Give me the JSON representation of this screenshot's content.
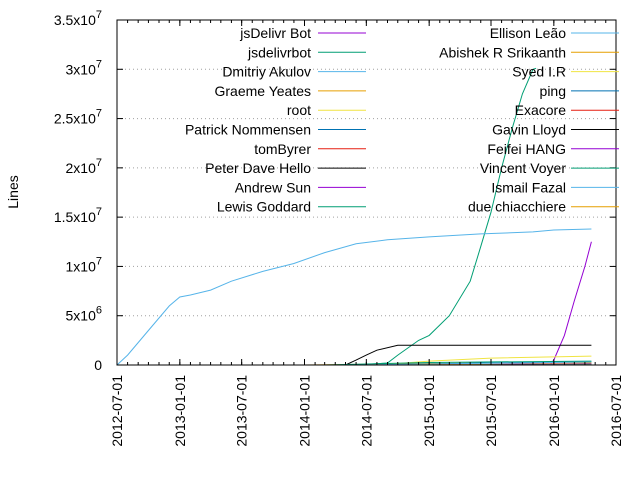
{
  "chart_data": {
    "type": "line",
    "title": "",
    "xlabel": "",
    "ylabel": "Lines",
    "x_ticks": [
      "2012-07-01",
      "2013-01-01",
      "2013-07-01",
      "2014-01-01",
      "2014-07-01",
      "2015-01-01",
      "2015-07-01",
      "2016-01-01",
      "2016-07-01"
    ],
    "y_ticks": [
      {
        "value": 0,
        "label": "0",
        "exp": ""
      },
      {
        "value": 5000000,
        "label": "5x10",
        "exp": "6"
      },
      {
        "value": 10000000,
        "label": "1x10",
        "exp": "7"
      },
      {
        "value": 15000000,
        "label": "1.5x10",
        "exp": "7"
      },
      {
        "value": 20000000,
        "label": "2x10",
        "exp": "7"
      },
      {
        "value": 25000000,
        "label": "2.5x10",
        "exp": "7"
      },
      {
        "value": 30000000,
        "label": "3x10",
        "exp": "7"
      },
      {
        "value": 35000000,
        "label": "3.5x10",
        "exp": "7"
      }
    ],
    "xlim": [
      "2012-07-01",
      "2016-07-01"
    ],
    "ylim": [
      0,
      35000000
    ],
    "grid": "horizontal-dotted",
    "legend_position": "top",
    "series": [
      {
        "name": "jsDelivr Bot",
        "color": "#9400d3",
        "points": [
          [
            "2015-12-20",
            0
          ],
          [
            "2016-01-01",
            500000
          ],
          [
            "2016-02-01",
            3000000
          ],
          [
            "2016-03-01",
            6500000
          ],
          [
            "2016-04-01",
            10000000
          ],
          [
            "2016-04-20",
            12500000
          ]
        ]
      },
      {
        "name": "jsdelivrbot",
        "color": "#009e73",
        "points": [
          [
            "2014-06-01",
            0
          ],
          [
            "2014-09-01",
            200000
          ],
          [
            "2014-10-01",
            1000000
          ],
          [
            "2014-12-01",
            2500000
          ],
          [
            "2015-01-01",
            3000000
          ],
          [
            "2015-03-01",
            5000000
          ],
          [
            "2015-05-01",
            8500000
          ],
          [
            "2015-06-01",
            12000000
          ],
          [
            "2015-07-01",
            15500000
          ],
          [
            "2015-08-01",
            20000000
          ],
          [
            "2015-09-01",
            24000000
          ],
          [
            "2015-10-01",
            27500000
          ],
          [
            "2015-11-01",
            30000000
          ],
          [
            "2015-11-10",
            30100000
          ]
        ]
      },
      {
        "name": "Dmitriy Akulov",
        "color": "#56b4e9",
        "points": [
          [
            "2012-07-01",
            0
          ],
          [
            "2012-08-01",
            1000000
          ],
          [
            "2012-10-01",
            3500000
          ],
          [
            "2012-12-01",
            6000000
          ],
          [
            "2013-01-01",
            6900000
          ],
          [
            "2013-02-01",
            7100000
          ],
          [
            "2013-04-01",
            7600000
          ],
          [
            "2013-06-01",
            8500000
          ],
          [
            "2013-09-01",
            9500000
          ],
          [
            "2013-12-01",
            10300000
          ],
          [
            "2014-03-01",
            11400000
          ],
          [
            "2014-06-01",
            12300000
          ],
          [
            "2014-09-01",
            12700000
          ],
          [
            "2015-01-01",
            13000000
          ],
          [
            "2015-06-01",
            13300000
          ],
          [
            "2015-11-01",
            13500000
          ],
          [
            "2016-01-01",
            13700000
          ],
          [
            "2016-04-20",
            13800000
          ]
        ]
      },
      {
        "name": "Graeme Yeates",
        "color": "#e69f00",
        "points": [
          [
            "2014-01-01",
            0
          ],
          [
            "2015-01-01",
            150000
          ],
          [
            "2016-04-20",
            250000
          ]
        ]
      },
      {
        "name": "root",
        "color": "#f0e442",
        "points": [
          [
            "2014-08-01",
            0
          ],
          [
            "2015-01-01",
            400000
          ],
          [
            "2015-07-01",
            700000
          ],
          [
            "2016-04-20",
            900000
          ]
        ]
      },
      {
        "name": "Patrick Nommensen",
        "color": "#0072b2",
        "points": [
          [
            "2014-08-01",
            0
          ],
          [
            "2015-06-01",
            200000
          ],
          [
            "2016-04-20",
            350000
          ]
        ]
      },
      {
        "name": "tomByrer",
        "color": "#e51e10",
        "points": [
          [
            "2014-09-01",
            0
          ],
          [
            "2016-04-20",
            100000
          ]
        ]
      },
      {
        "name": "Peter Dave Hello",
        "color": "#000000",
        "points": [
          [
            "2014-05-01",
            0
          ],
          [
            "2014-06-01",
            500000
          ],
          [
            "2014-07-01",
            1000000
          ],
          [
            "2014-08-01",
            1500000
          ],
          [
            "2014-10-01",
            2000000
          ],
          [
            "2016-04-20",
            2000000
          ]
        ]
      },
      {
        "name": "Andrew Sun",
        "color": "#9400d3",
        "points": [
          [
            "2015-01-01",
            0
          ],
          [
            "2016-04-20",
            150000
          ]
        ]
      },
      {
        "name": "Lewis Goddard",
        "color": "#009e73",
        "points": [
          [
            "2014-03-01",
            0
          ],
          [
            "2015-01-01",
            250000
          ],
          [
            "2016-04-20",
            400000
          ]
        ]
      },
      {
        "name": "Ellison Leão",
        "color": "#56b4e9",
        "points": [
          [
            "2014-06-01",
            0
          ],
          [
            "2016-04-20",
            300000
          ]
        ]
      },
      {
        "name": "Abishek R Srikaanth",
        "color": "#e69f00",
        "points": [
          [
            "2014-10-01",
            0
          ],
          [
            "2016-04-20",
            100000
          ]
        ]
      },
      {
        "name": "Syed I.R",
        "color": "#f0e442",
        "points": [
          [
            "2015-02-01",
            0
          ],
          [
            "2016-04-20",
            80000
          ]
        ]
      },
      {
        "name": "ping",
        "color": "#0072b2",
        "points": [
          [
            "2015-03-01",
            0
          ],
          [
            "2016-04-20",
            60000
          ]
        ]
      },
      {
        "name": "Exacore",
        "color": "#e51e10",
        "points": [
          [
            "2015-04-01",
            0
          ],
          [
            "2016-04-20",
            50000
          ]
        ]
      },
      {
        "name": "Gavin Lloyd",
        "color": "#000000",
        "points": [
          [
            "2015-05-01",
            0
          ],
          [
            "2016-04-20",
            40000
          ]
        ]
      },
      {
        "name": "Feifei HANG",
        "color": "#9400d3",
        "points": [
          [
            "2015-06-01",
            0
          ],
          [
            "2016-04-20",
            30000
          ]
        ]
      },
      {
        "name": "Vincent Voyer",
        "color": "#009e73",
        "points": [
          [
            "2015-07-01",
            0
          ],
          [
            "2016-04-20",
            25000
          ]
        ]
      },
      {
        "name": "Ismail Fazal",
        "color": "#56b4e9",
        "points": [
          [
            "2015-08-01",
            0
          ],
          [
            "2016-04-20",
            20000
          ]
        ]
      },
      {
        "name": "due chiacchiere",
        "color": "#e69f00",
        "points": [
          [
            "2015-09-01",
            0
          ],
          [
            "2016-04-20",
            15000
          ]
        ]
      }
    ]
  }
}
